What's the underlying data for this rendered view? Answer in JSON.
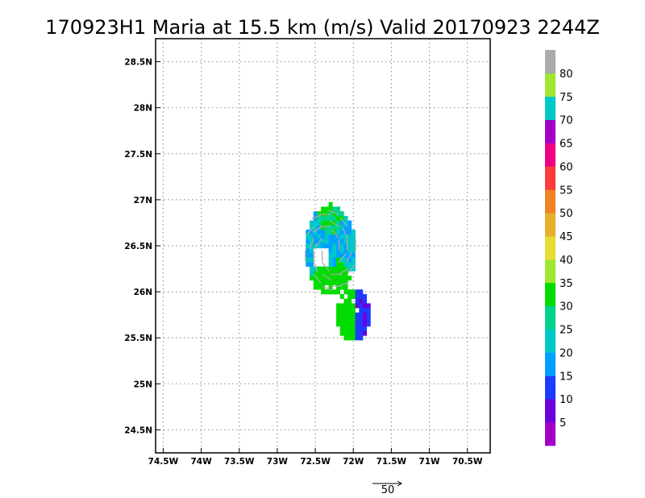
{
  "chart_data": {
    "type": "heatmap",
    "title": "170923H1 Maria at 15.5 km (m/s) Valid 20170923 2244Z",
    "x_range": [
      -74.6,
      -70.2
    ],
    "y_range": [
      24.25,
      28.75
    ],
    "x_ticks": [
      {
        "value": -74.5,
        "label": "74.5W"
      },
      {
        "value": -74.0,
        "label": "74W"
      },
      {
        "value": -73.5,
        "label": "73.5W"
      },
      {
        "value": -73.0,
        "label": "73W"
      },
      {
        "value": -72.5,
        "label": "72.5W"
      },
      {
        "value": -72.0,
        "label": "72W"
      },
      {
        "value": -71.5,
        "label": "71.5W"
      },
      {
        "value": -71.0,
        "label": "71W"
      },
      {
        "value": -70.5,
        "label": "70.5W"
      }
    ],
    "y_ticks": [
      {
        "value": 24.5,
        "label": "24.5N"
      },
      {
        "value": 25.0,
        "label": "25N"
      },
      {
        "value": 25.5,
        "label": "25.5N"
      },
      {
        "value": 26.0,
        "label": "26N"
      },
      {
        "value": 26.5,
        "label": "26.5N"
      },
      {
        "value": 27.0,
        "label": "27N"
      },
      {
        "value": 27.5,
        "label": "27.5N"
      },
      {
        "value": 28.0,
        "label": "28N"
      },
      {
        "value": 28.5,
        "label": "28.5N"
      }
    ],
    "grid": true,
    "colorbar": {
      "labels": [
        "5",
        "10",
        "15",
        "20",
        "25",
        "30",
        "35",
        "40",
        "45",
        "50",
        "55",
        "60",
        "65",
        "70",
        "75",
        "80"
      ],
      "colors": [
        "#a000c8",
        "#6e00dc",
        "#1e3cff",
        "#00a0ff",
        "#00c8c8",
        "#00d28c",
        "#00dc00",
        "#a0e632",
        "#e6dc32",
        "#e6af2d",
        "#f08228",
        "#fa3c3c",
        "#f00082",
        "#a000c8",
        "#00c8c8",
        "#a0e632",
        "#aaaaaa"
      ]
    },
    "reference_vector": {
      "label": "50",
      "magnitude": 50
    },
    "wind_field_center": {
      "lon": -72.3,
      "lat": 26.45
    }
  }
}
